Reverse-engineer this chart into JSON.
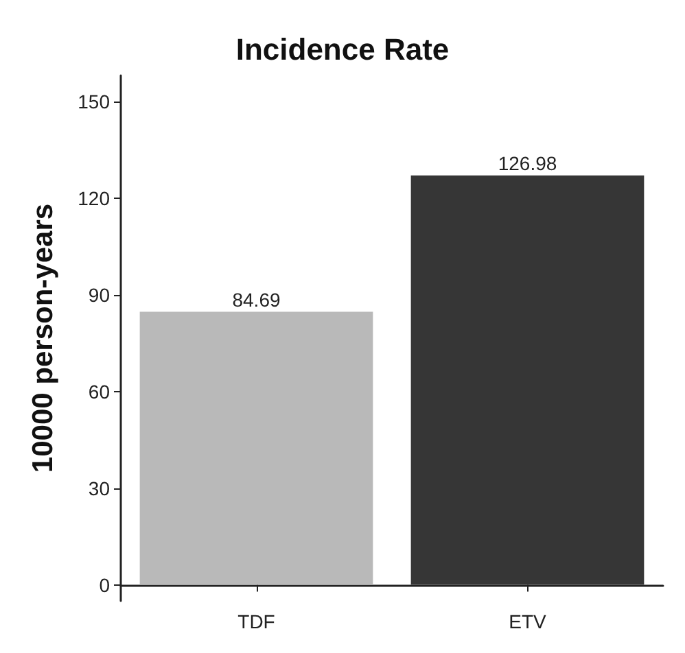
{
  "chart_data": {
    "type": "bar",
    "title": "Incidence Rate",
    "ylabel": "10000 person-years",
    "categories": [
      "TDF",
      "ETV"
    ],
    "values": [
      84.69,
      126.98
    ],
    "colors": [
      "#b9b9b9",
      "#363636"
    ],
    "ylim": [
      -5,
      158
    ],
    "yticks": [
      0,
      30,
      60,
      90,
      120,
      150
    ],
    "data_labels": true,
    "grid": false
  }
}
